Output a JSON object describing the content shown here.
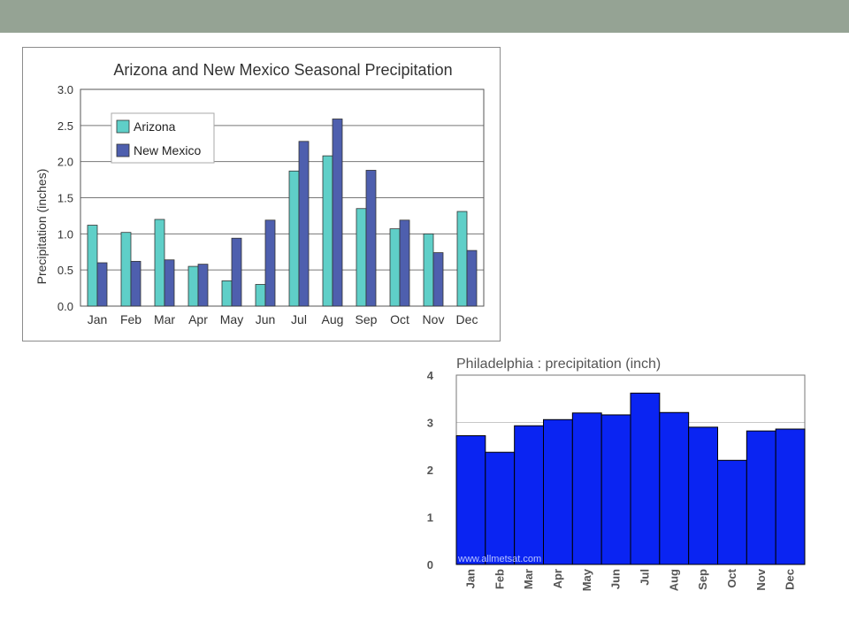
{
  "chart_data": [
    {
      "type": "bar",
      "title": "Arizona and New Mexico Seasonal Precipitation",
      "ylabel": "Precipitation (inches)",
      "xlabel": "",
      "ylim": [
        0,
        3.0
      ],
      "yticks": [
        "0.0",
        "0.5",
        "1.0",
        "1.5",
        "2.0",
        "2.5",
        "3.0"
      ],
      "grid": true,
      "legend_position": "top-left",
      "categories": [
        "Jan",
        "Feb",
        "Mar",
        "Apr",
        "May",
        "Jun",
        "Jul",
        "Aug",
        "Sep",
        "Oct",
        "Nov",
        "Dec"
      ],
      "series": [
        {
          "name": "Arizona",
          "color": "#5fcfc8",
          "values": [
            1.12,
            1.02,
            1.2,
            0.55,
            0.35,
            0.3,
            1.87,
            2.08,
            1.35,
            1.07,
            1.0,
            1.31
          ]
        },
        {
          "name": "New Mexico",
          "color": "#4e5fae",
          "values": [
            0.6,
            0.62,
            0.64,
            0.58,
            0.94,
            1.19,
            2.28,
            2.59,
            1.88,
            1.19,
            0.74,
            0.77
          ]
        }
      ]
    },
    {
      "type": "bar",
      "title": "Philadelphia : precipitation (inch)",
      "xlabel": "",
      "ylabel": "",
      "ylim": [
        0,
        4
      ],
      "yticks": [
        "0",
        "1",
        "2",
        "3",
        "4"
      ],
      "grid": true,
      "watermark": "www.allmetsat.com",
      "categories": [
        "Jan",
        "Feb",
        "Mar",
        "Apr",
        "May",
        "Jun",
        "Jul",
        "Aug",
        "Sep",
        "Oct",
        "Nov",
        "Dec"
      ],
      "series": [
        {
          "color": "#0a24f2",
          "values": [
            2.72,
            2.37,
            2.93,
            3.06,
            3.2,
            3.16,
            3.62,
            3.21,
            2.9,
            2.2,
            2.82,
            2.86
          ]
        }
      ]
    }
  ]
}
